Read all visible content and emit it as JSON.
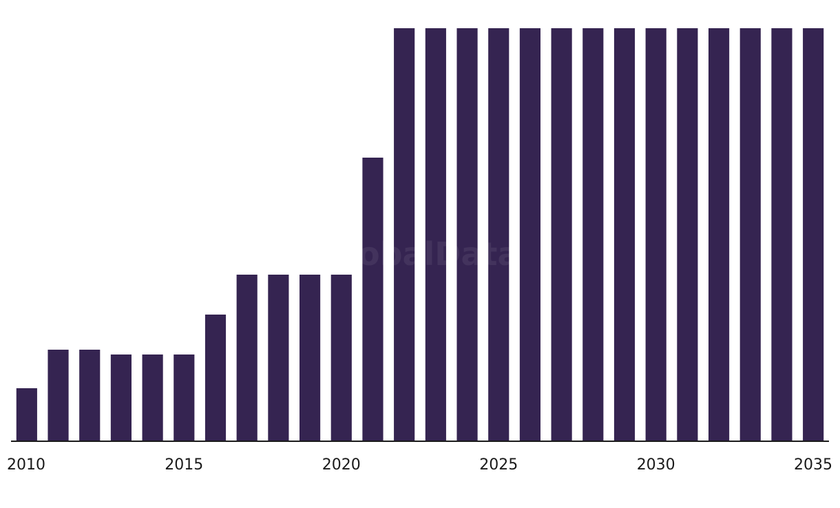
{
  "watermark": "GlobalData",
  "chart_data": {
    "type": "bar",
    "title": "",
    "xlabel": "",
    "ylabel": "",
    "categories": [
      "2010",
      "2011",
      "2012",
      "2013",
      "2014",
      "2015",
      "2016",
      "2017",
      "2018",
      "2019",
      "2020",
      "2021",
      "2022",
      "2023",
      "2024",
      "2025",
      "2026",
      "2027",
      "2028",
      "2029",
      "2030",
      "2031",
      "2032",
      "2033",
      "2034",
      "2035"
    ],
    "values": [
      77,
      133,
      133,
      126,
      126,
      126,
      184,
      242,
      242,
      242,
      242,
      412,
      600,
      600,
      600,
      600,
      600,
      600,
      600,
      600,
      600,
      600,
      600,
      600,
      600,
      600
    ],
    "tick_labels": [
      "2010",
      "2015",
      "2020",
      "2025",
      "2030",
      "2035"
    ],
    "ylim": [
      0,
      600
    ],
    "grid": false,
    "bar_color": "#352451",
    "axis_color": "#1a1a1a"
  }
}
